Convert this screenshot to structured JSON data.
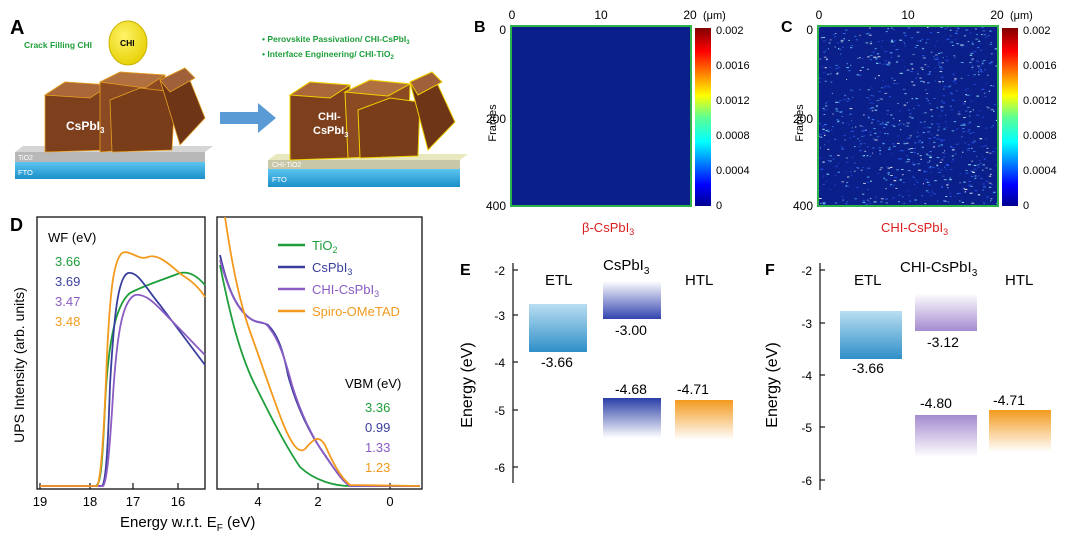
{
  "panelA": {
    "letter": "A",
    "crack_label": "Crack Filling CHI",
    "chi_label": "CHI",
    "bullets": [
      "Perovskite Passivation/ CHI-CsPbI",
      "Interface Engineering/ CHI-TiO"
    ],
    "bullet_subs": [
      "3",
      "2"
    ],
    "left_crystal": "CsPbI",
    "left_crystal_sub": "3",
    "right_crystal_line1": "CHI-",
    "right_crystal_line2": "CsPbI",
    "right_crystal_sub": "3",
    "layer_tio2": "TiO2",
    "layer_fto": "FTO",
    "layer_chi_tio2": "CHI-TiO2",
    "colors": {
      "crystal": "#8b4a22",
      "crystal_top": "#a9673a",
      "fto": "#2aa9e0",
      "tio2": "#b8b8b8",
      "chi": "#f2e200",
      "arrow": "#5b9bd5",
      "green_text": "#1e9e3a"
    }
  },
  "panelB": {
    "letter": "B",
    "x_ticks": [
      "0",
      "10",
      "20"
    ],
    "x_unit": "(μm)",
    "y_label": "Frames",
    "y_ticks": [
      "0",
      "200",
      "400"
    ],
    "caption": "β-CsPbI",
    "caption_sub": "3",
    "colorbar_ticks": [
      "0.002",
      "0.0016",
      "0.0012",
      "0.0008",
      "0.0004",
      "0"
    ]
  },
  "panelC": {
    "letter": "C",
    "x_ticks": [
      "0",
      "10",
      "20"
    ],
    "x_unit": "(μm)",
    "y_label": "Frames",
    "y_ticks": [
      "0",
      "200",
      "400"
    ],
    "caption": "CHI-CsPbI",
    "caption_sub": "3",
    "colorbar_ticks": [
      "0.002",
      "0.0016",
      "0.0012",
      "0.0008",
      "0.0004",
      "0"
    ]
  },
  "panelD": {
    "letter": "D",
    "y_label": "UPS Intensity (arb. units)",
    "x_label": "Energy w.r.t. E",
    "x_label_sub": "F",
    "x_label_unit": " (eV)",
    "left_ticks": [
      "19",
      "18",
      "17",
      "16"
    ],
    "right_ticks": [
      "4",
      "2",
      "0"
    ],
    "wf_title": "WF (eV)",
    "vbm_title": "VBM (eV)",
    "wf_values": [
      "3.66",
      "3.69",
      "3.47",
      "3.48"
    ],
    "vbm_values": [
      "3.36",
      "0.99",
      "1.33",
      "1.23"
    ],
    "legend": [
      {
        "label": "TiO",
        "sub": "2",
        "color": "#1e9e3a"
      },
      {
        "label": "CsPbI",
        "sub": "3",
        "color": "#3a3f9e"
      },
      {
        "label": "CHI-CsPbI",
        "sub": "3",
        "color": "#8a5cc4"
      },
      {
        "label": "Spiro-OMeTAD",
        "sub": "",
        "color": "#f39a1e"
      }
    ]
  },
  "panelE": {
    "letter": "E",
    "y_label": "Energy (eV)",
    "y_ticks": [
      "-2",
      "-3",
      "-4",
      "-5",
      "-6"
    ],
    "etl_label": "ETL",
    "mid_label": "CsPbI",
    "mid_label_sub": "3",
    "htl_label": "HTL",
    "values": [
      "-3.66",
      "-3.00",
      "-4.68",
      "-4.71"
    ]
  },
  "panelF": {
    "letter": "F",
    "y_label": "Energy (eV)",
    "y_ticks": [
      "-2",
      "-3",
      "-4",
      "-5",
      "-6"
    ],
    "etl_label": "ETL",
    "mid_label": "CHI-CsPbI",
    "mid_label_sub": "3",
    "htl_label": "HTL",
    "values": [
      "-3.66",
      "-3.12",
      "-4.80",
      "-4.71"
    ]
  }
}
